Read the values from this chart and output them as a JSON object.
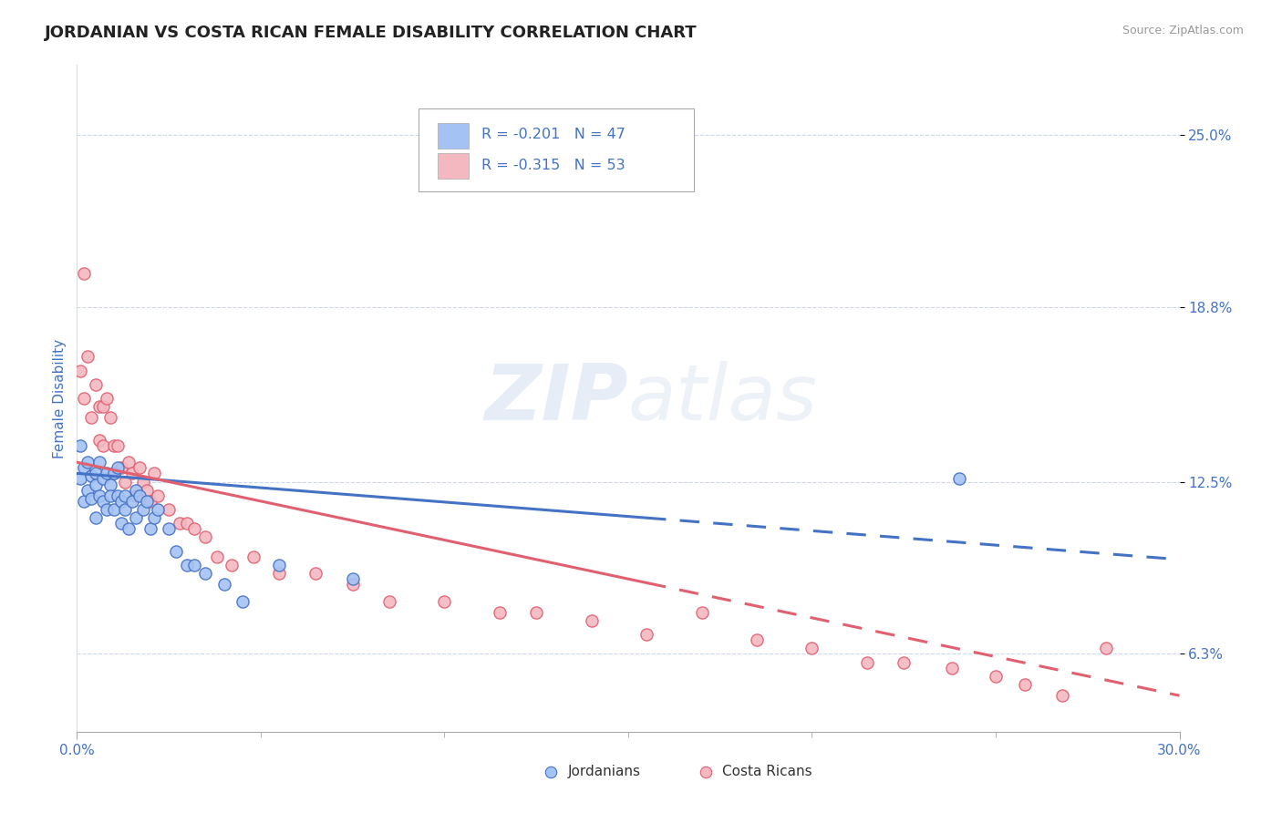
{
  "title": "JORDANIAN VS COSTA RICAN FEMALE DISABILITY CORRELATION CHART",
  "source": "Source: ZipAtlas.com",
  "ylabel": "Female Disability",
  "ytick_labels": [
    "6.3%",
    "12.5%",
    "18.8%",
    "25.0%"
  ],
  "ytick_values": [
    0.063,
    0.125,
    0.188,
    0.25
  ],
  "xmin": 0.0,
  "xmax": 0.3,
  "ymin": 0.035,
  "ymax": 0.275,
  "color_blue": "#a4c2f4",
  "color_pink": "#f4b8c1",
  "color_blue_line": "#4472c4",
  "color_pink_line": "#e06070",
  "color_label": "#4472c4",
  "color_grid": "#c9d9f0",
  "jordanians_x": [
    0.001,
    0.001,
    0.002,
    0.002,
    0.003,
    0.003,
    0.004,
    0.004,
    0.005,
    0.005,
    0.005,
    0.006,
    0.006,
    0.007,
    0.007,
    0.008,
    0.008,
    0.009,
    0.009,
    0.01,
    0.01,
    0.011,
    0.011,
    0.012,
    0.012,
    0.013,
    0.013,
    0.014,
    0.015,
    0.016,
    0.016,
    0.017,
    0.018,
    0.019,
    0.02,
    0.021,
    0.022,
    0.025,
    0.027,
    0.03,
    0.032,
    0.035,
    0.04,
    0.045,
    0.055,
    0.075,
    0.24
  ],
  "jordanians_y": [
    0.126,
    0.138,
    0.13,
    0.118,
    0.132,
    0.122,
    0.127,
    0.119,
    0.128,
    0.124,
    0.112,
    0.132,
    0.12,
    0.126,
    0.118,
    0.128,
    0.115,
    0.124,
    0.12,
    0.128,
    0.115,
    0.13,
    0.12,
    0.118,
    0.11,
    0.12,
    0.115,
    0.108,
    0.118,
    0.122,
    0.112,
    0.12,
    0.115,
    0.118,
    0.108,
    0.112,
    0.115,
    0.108,
    0.1,
    0.095,
    0.095,
    0.092,
    0.088,
    0.082,
    0.095,
    0.09,
    0.126
  ],
  "costa_ricans_x": [
    0.001,
    0.002,
    0.002,
    0.003,
    0.004,
    0.005,
    0.006,
    0.006,
    0.007,
    0.007,
    0.008,
    0.009,
    0.01,
    0.01,
    0.011,
    0.012,
    0.013,
    0.014,
    0.015,
    0.016,
    0.017,
    0.018,
    0.019,
    0.02,
    0.021,
    0.022,
    0.025,
    0.028,
    0.03,
    0.032,
    0.035,
    0.038,
    0.042,
    0.048,
    0.055,
    0.065,
    0.075,
    0.085,
    0.1,
    0.115,
    0.125,
    0.14,
    0.155,
    0.17,
    0.185,
    0.2,
    0.215,
    0.225,
    0.238,
    0.25,
    0.258,
    0.268,
    0.28
  ],
  "costa_ricans_y": [
    0.165,
    0.2,
    0.155,
    0.17,
    0.148,
    0.16,
    0.152,
    0.14,
    0.152,
    0.138,
    0.155,
    0.148,
    0.138,
    0.128,
    0.138,
    0.13,
    0.125,
    0.132,
    0.128,
    0.12,
    0.13,
    0.125,
    0.122,
    0.118,
    0.128,
    0.12,
    0.115,
    0.11,
    0.11,
    0.108,
    0.105,
    0.098,
    0.095,
    0.098,
    0.092,
    0.092,
    0.088,
    0.082,
    0.082,
    0.078,
    0.078,
    0.075,
    0.07,
    0.078,
    0.068,
    0.065,
    0.06,
    0.06,
    0.058,
    0.055,
    0.052,
    0.048,
    0.065
  ],
  "trend_blue_x0": 0.0,
  "trend_blue_x_solid_end": 0.155,
  "trend_blue_x1": 0.3,
  "trend_blue_y0": 0.128,
  "trend_blue_y1": 0.097,
  "trend_pink_x0": 0.0,
  "trend_pink_x_solid_end": 0.155,
  "trend_pink_x1": 0.3,
  "trend_pink_y0": 0.132,
  "trend_pink_y1": 0.048
}
